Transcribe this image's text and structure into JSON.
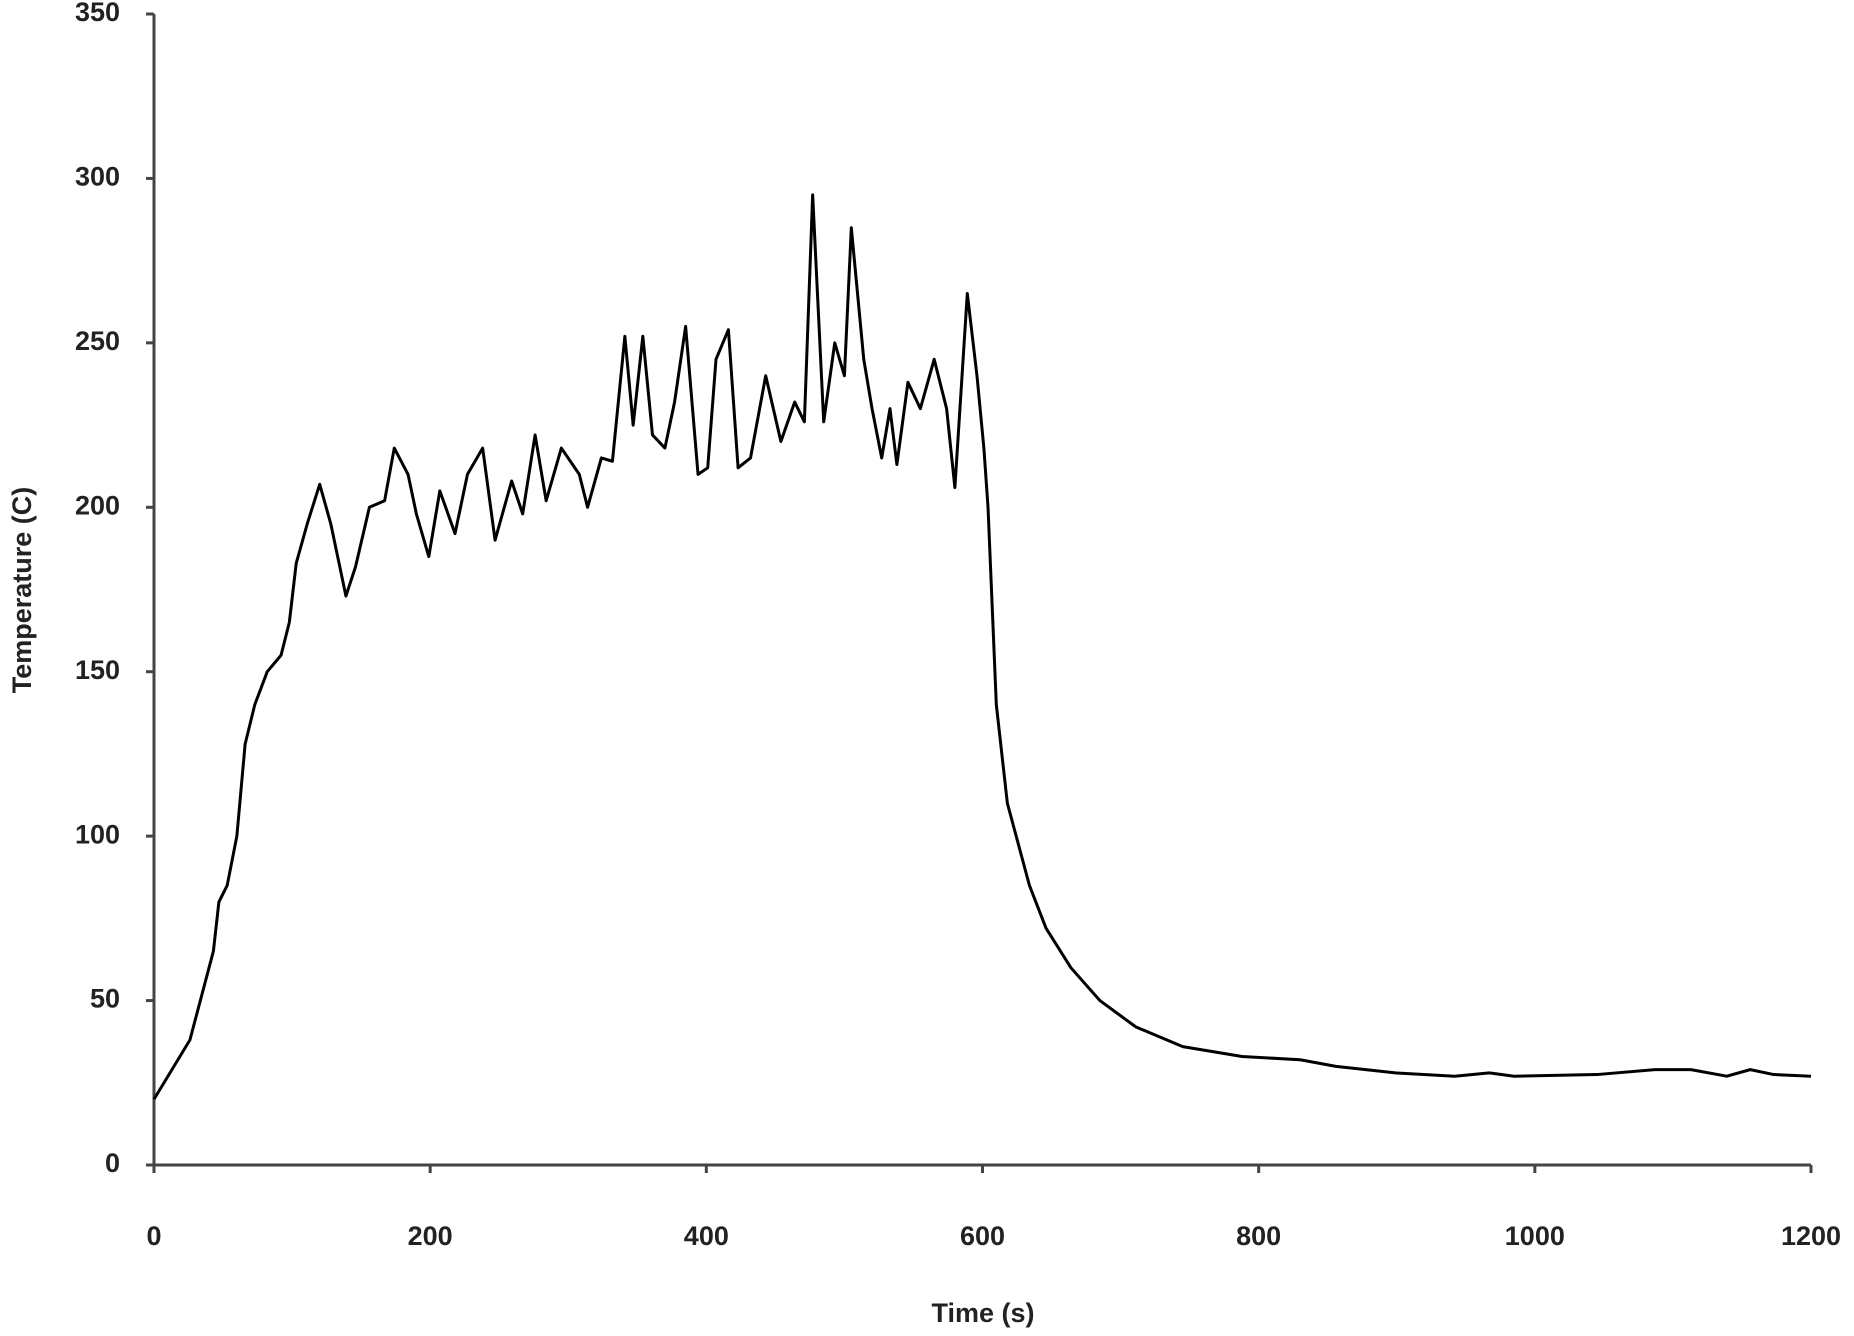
{
  "chart_data": {
    "type": "line",
    "x_label": "Time (s)",
    "y_label": "Temperature (C)",
    "xlim": [
      0,
      1200
    ],
    "xticks": [
      0,
      200,
      400,
      600,
      800,
      1000,
      1200
    ],
    "ylim": [
      0,
      350
    ],
    "yticks": [
      0,
      50,
      100,
      150,
      200,
      250,
      300,
      350
    ],
    "grid": false,
    "series": [
      {
        "color": "#000000",
        "x": [
          0,
          26,
          43,
          47,
          53,
          60,
          66,
          73,
          82,
          92,
          98,
          103,
          111,
          120,
          128,
          139,
          146,
          156,
          167,
          174,
          184,
          190,
          199,
          207,
          218,
          227,
          238,
          247,
          259,
          267,
          276,
          284,
          295,
          308,
          314,
          324,
          332,
          341,
          347,
          354,
          361,
          370,
          377,
          385,
          394,
          401,
          407,
          416,
          423,
          432,
          443,
          454,
          464,
          471,
          477,
          485,
          493,
          500,
          505,
          514,
          520,
          527,
          533,
          538,
          546,
          555,
          565,
          574,
          580,
          589,
          596,
          601,
          604,
          610,
          618,
          634,
          646,
          664,
          685,
          711,
          745,
          788,
          830,
          856,
          899,
          942,
          967,
          985,
          1045,
          1087,
          1113,
          1139,
          1156,
          1173,
          1200
        ],
        "values": [
          20,
          38,
          65,
          80,
          85,
          100,
          128,
          140,
          150,
          155,
          165,
          183,
          195,
          207,
          195,
          173,
          182,
          200,
          202,
          218,
          210,
          198,
          185,
          205,
          192,
          210,
          218,
          190,
          208,
          198,
          222,
          202,
          218,
          210,
          200,
          215,
          214,
          252,
          225,
          252,
          222,
          218,
          232,
          255,
          210,
          212,
          245,
          254,
          212,
          215,
          240,
          220,
          232,
          226,
          295,
          226,
          250,
          240,
          285,
          245,
          230,
          215,
          230,
          213,
          238,
          230,
          245,
          230,
          206,
          265,
          240,
          218,
          200,
          140,
          110,
          85,
          72,
          60,
          50,
          42,
          36,
          33,
          32,
          30,
          28,
          27,
          28,
          27,
          27.5,
          29,
          29,
          27,
          29,
          27.5,
          27
        ]
      }
    ]
  }
}
